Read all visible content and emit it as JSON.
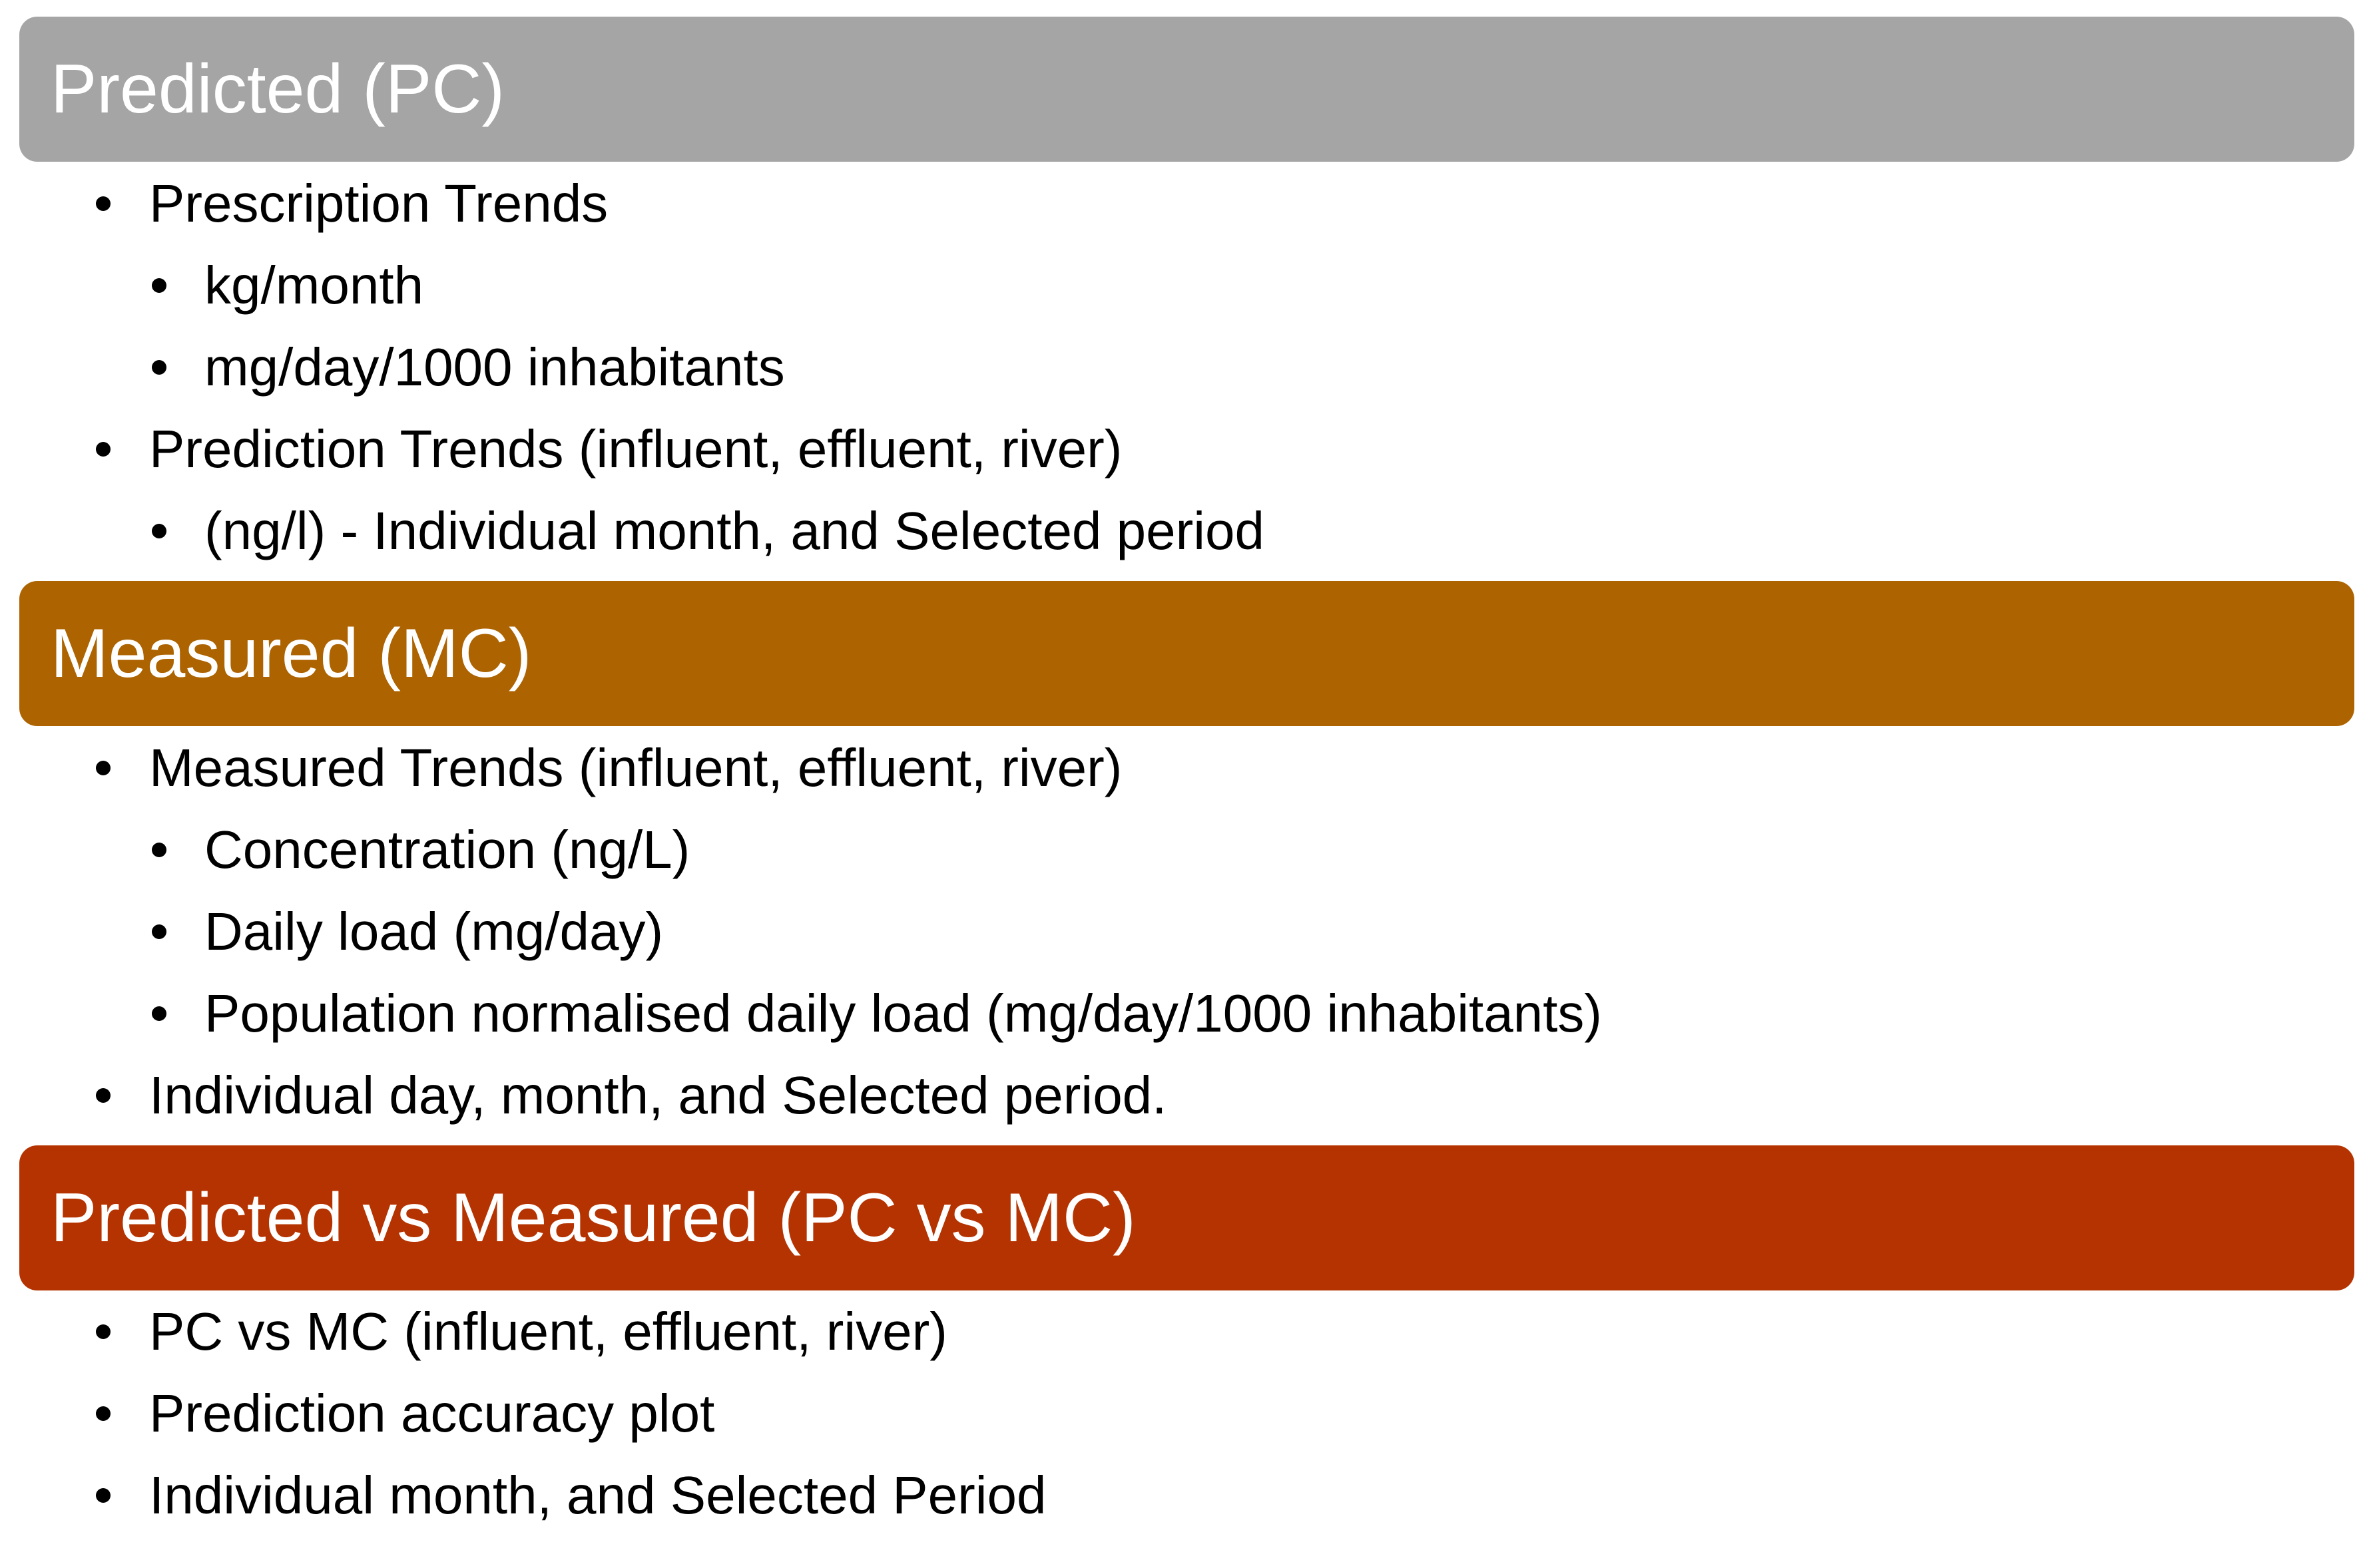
{
  "sections": [
    {
      "title": "Predicted (PC)",
      "color": "#a5a5a5",
      "items": [
        {
          "text": "Prescription Trends",
          "level": 1
        },
        {
          "text": "kg/month",
          "level": 2
        },
        {
          "text": "mg/day/1000 inhabitants",
          "level": 2
        },
        {
          "text": "Prediction Trends (influent, effluent, river)",
          "level": 1
        },
        {
          "text": "(ng/l) - Individual month, and Selected period",
          "level": 2
        }
      ]
    },
    {
      "title": "Measured (MC)",
      "color": "#ad6300",
      "items": [
        {
          "text": "Measured Trends (influent, effluent, river)",
          "level": 1
        },
        {
          "text": "Concentration (ng/L)",
          "level": 2
        },
        {
          "text": "Daily load (mg/day)",
          "level": 2
        },
        {
          "text": "Population normalised daily load (mg/day/1000 inhabitants)",
          "level": 2
        },
        {
          "text": "Individual day, month, and Selected period.",
          "level": 1
        }
      ]
    },
    {
      "title": "Predicted vs Measured (PC vs MC)",
      "color": "#b53300",
      "items": [
        {
          "text": "PC vs MC (influent, effluent, river)",
          "level": 1
        },
        {
          "text": "Prediction accuracy plot",
          "level": 1
        },
        {
          "text": "Individual month, and Selected Period",
          "level": 1
        }
      ]
    }
  ]
}
